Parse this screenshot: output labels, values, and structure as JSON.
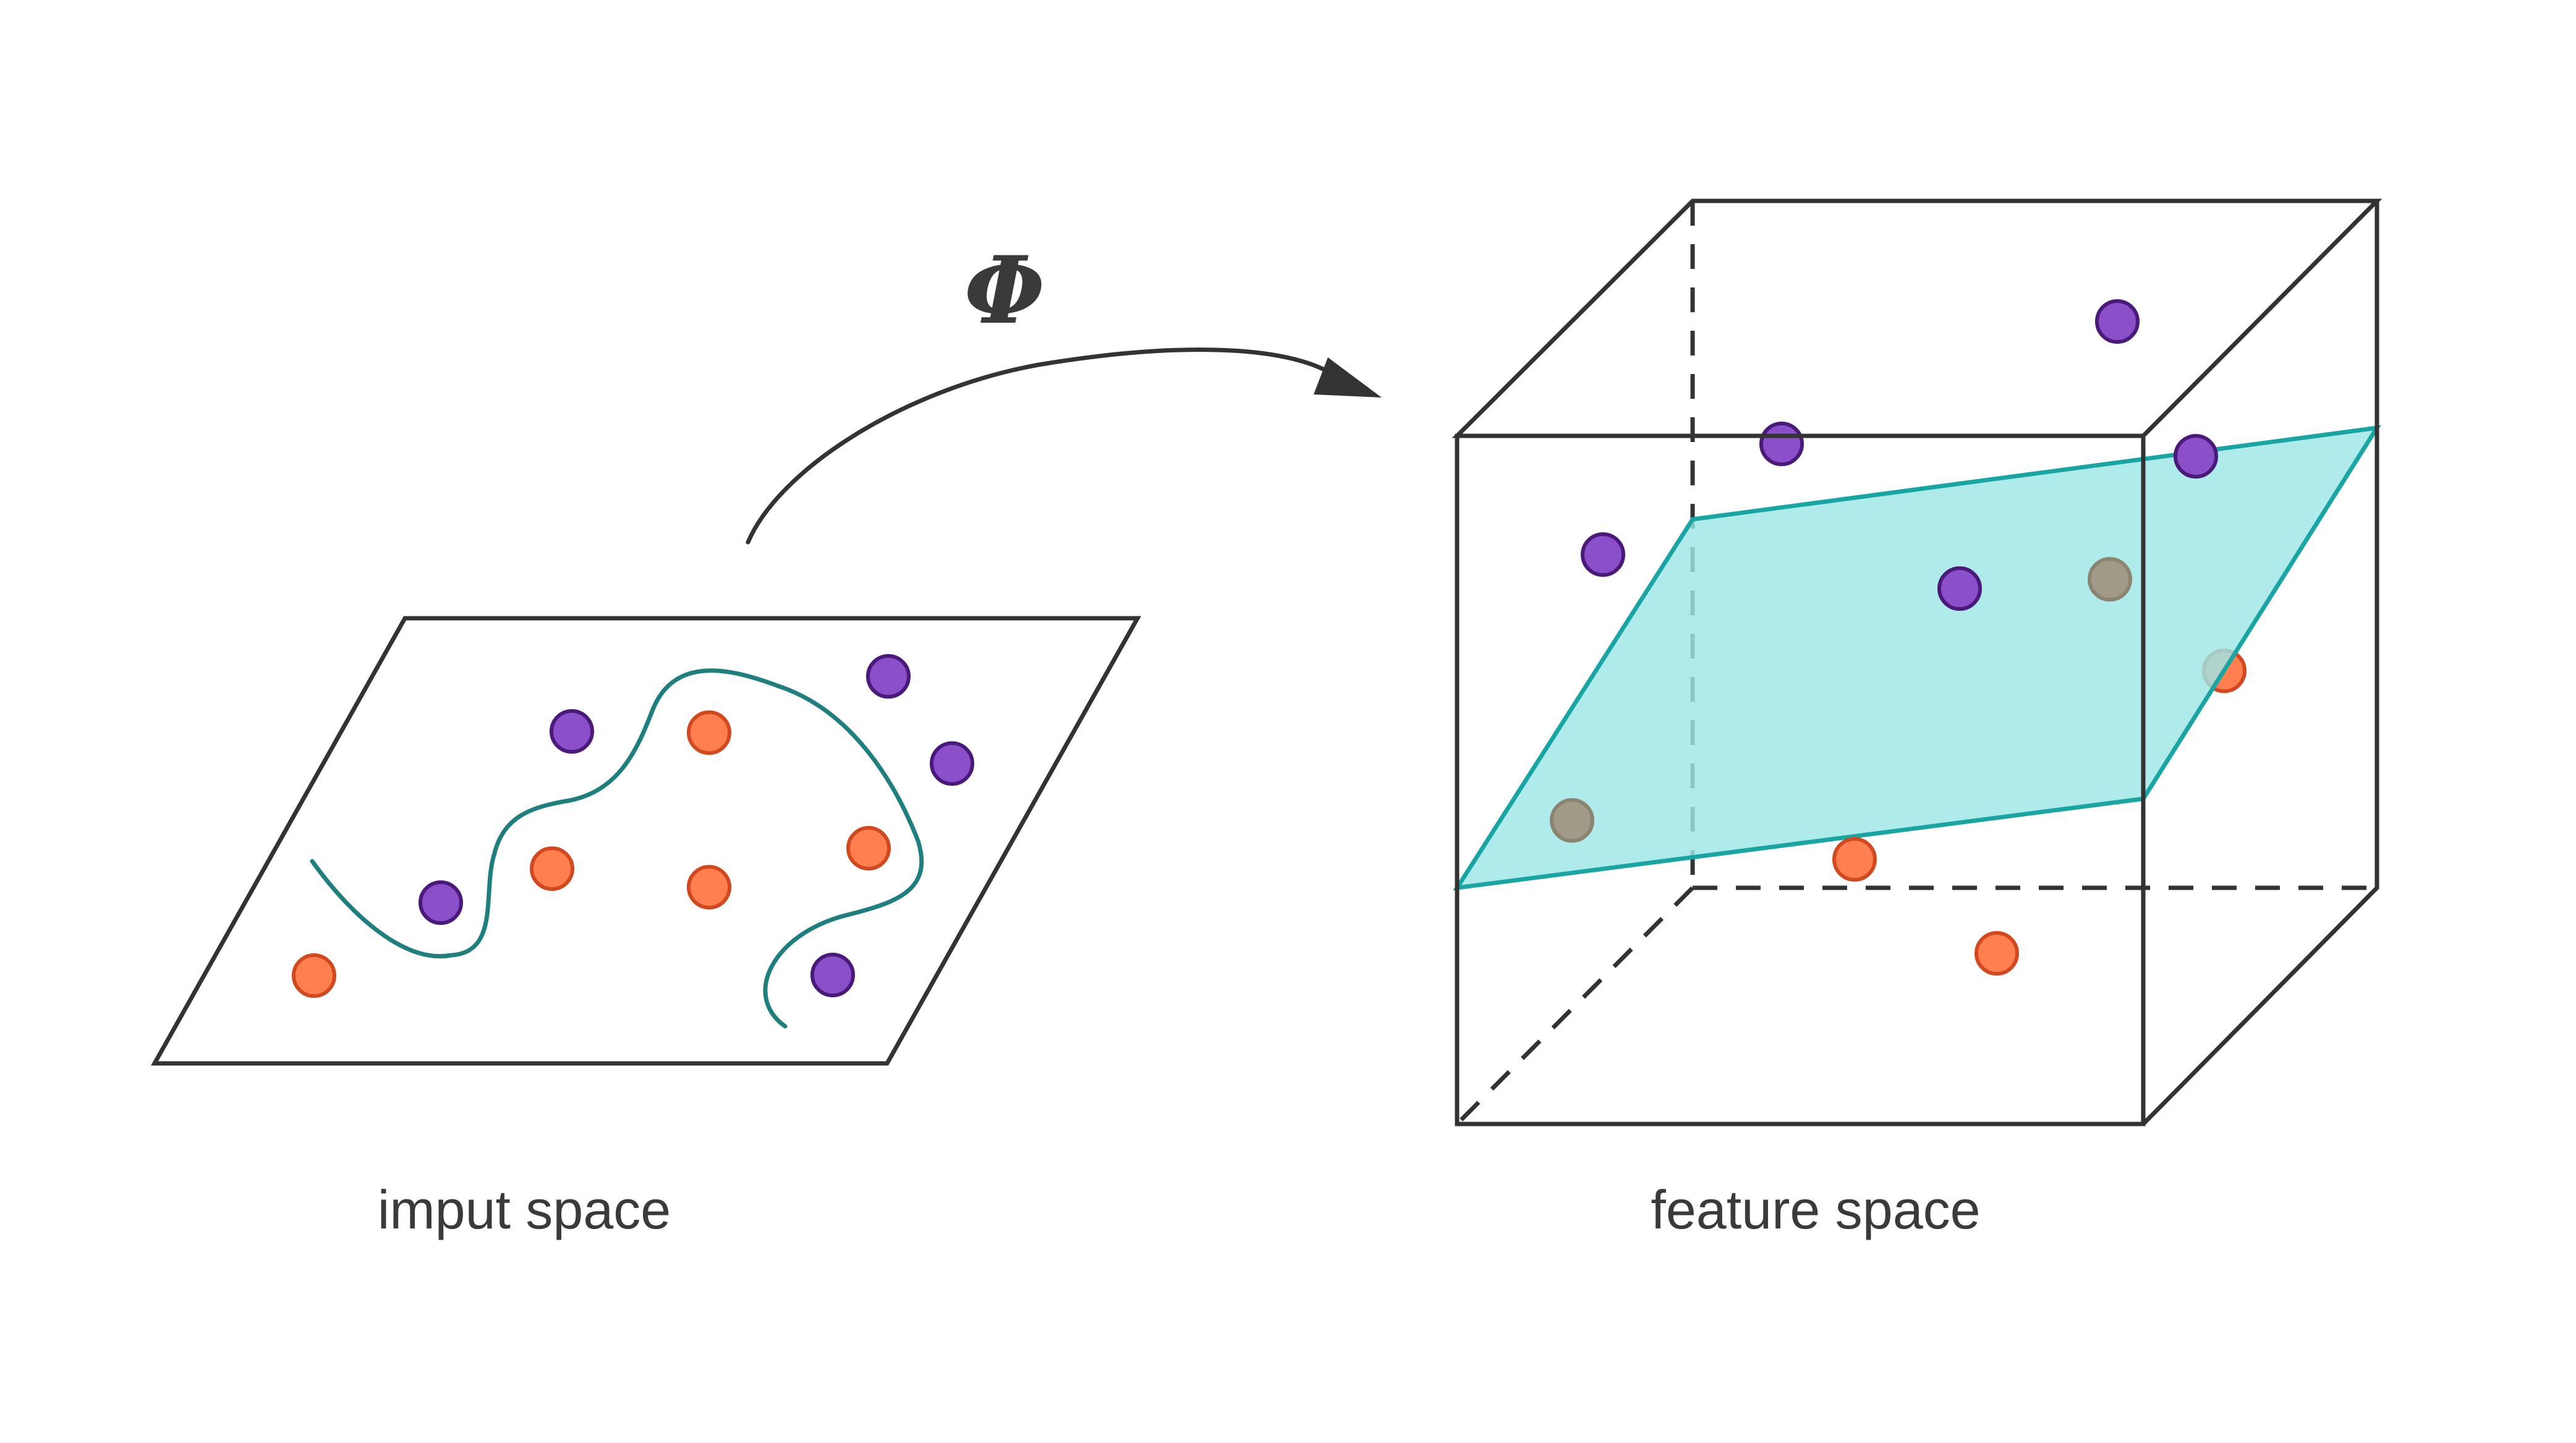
{
  "labels": {
    "mapping_symbol": "Φ",
    "input_space": "imput space",
    "feature_space": "feature space"
  },
  "colors": {
    "outline": "#333333",
    "class_a_fill": "#8a4fc9",
    "class_a_stroke": "#4a1a7a",
    "class_b_fill": "#ff7f50",
    "class_b_stroke": "#d2491f",
    "boundary_curve": "#1f7f7f",
    "hyperplane_fill": "#9fe6e6",
    "hyperplane_edge": "#1aa5a5",
    "occluded_point": "#a09a86"
  },
  "icons": {
    "mapping_arrow": "curved-arrow-icon",
    "input_plane": "parallelogram-plane",
    "feature_cube": "wireframe-cube"
  }
}
